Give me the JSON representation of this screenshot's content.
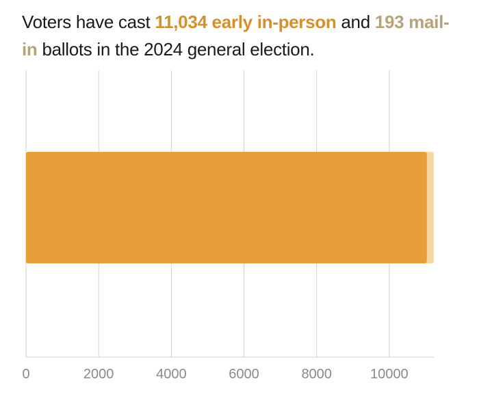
{
  "headline": {
    "prefix": "Voters have cast ",
    "early_highlight": "11,034 early in-person",
    "middle": " and ",
    "mail_highlight": "193 mail-in",
    "suffix": " ballots in the 2024 general election."
  },
  "colors": {
    "early": "#e89f3a",
    "mail": "#f5d9a0",
    "early_text": "#d4902f",
    "mail_text": "#b8a27a",
    "grid": "#d0d0d0",
    "axis_text": "#8a8a8a"
  },
  "chart_data": {
    "type": "bar",
    "orientation": "horizontal",
    "stacked": true,
    "categories": [
      ""
    ],
    "series": [
      {
        "name": "early in-person",
        "values": [
          11034
        ]
      },
      {
        "name": "mail-in",
        "values": [
          193
        ]
      }
    ],
    "xlim": [
      0,
      11227
    ],
    "xticks": [
      0,
      2000,
      4000,
      6000,
      8000,
      10000
    ],
    "xtick_labels": [
      "0",
      "2000",
      "4000",
      "6000",
      "8000",
      "10000"
    ],
    "grid": true,
    "legend": "none"
  }
}
